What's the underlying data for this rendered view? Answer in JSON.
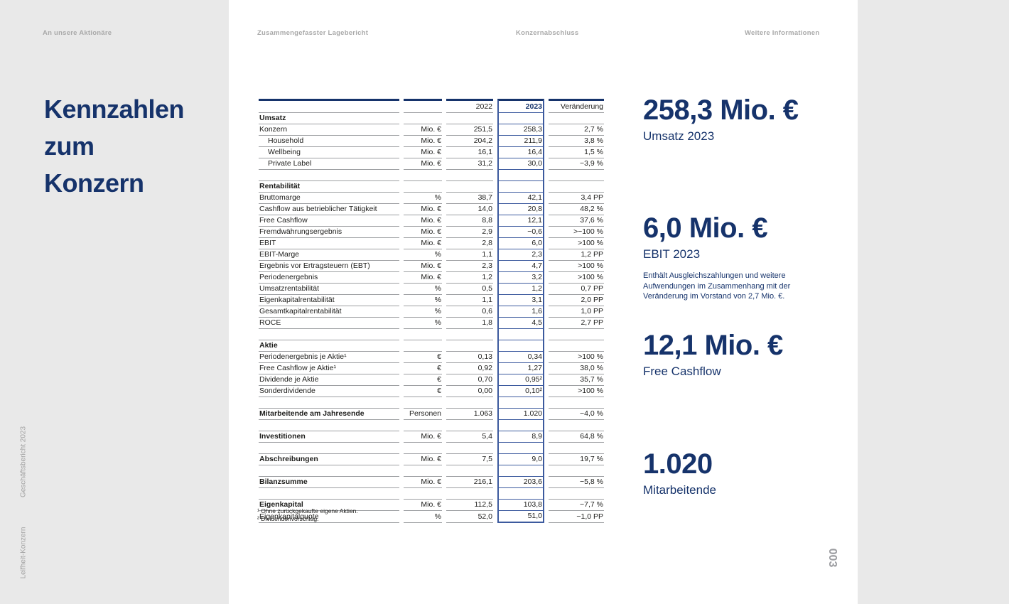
{
  "nav": [
    {
      "label": "An unsere Aktionäre"
    },
    {
      "label": "Zusammengefasster Lagebericht"
    },
    {
      "label": "Konzernabschluss"
    },
    {
      "label": "Weitere Informationen"
    }
  ],
  "title": "Kennzahlen\nzum\nKonzern",
  "side_captions": {
    "report": "Geschäftsbericht 2023",
    "company": "Leifheit-Konzern"
  },
  "page_number": "003",
  "colors": {
    "navy": "#16336b",
    "box_blue": "#3c5a9e",
    "line_gray": "#9d9fa2",
    "panel_gray": "#e9e9e9"
  },
  "table": {
    "columns": [
      "2022",
      "2023",
      "Veränderung"
    ],
    "rows": [
      {
        "type": "section",
        "label": "Umsatz"
      },
      {
        "type": "row",
        "label": "Konzern",
        "unit": "Mio. €",
        "y2022": "251,5",
        "y2023": "258,3",
        "change": "2,7 %"
      },
      {
        "type": "row",
        "indent": true,
        "label": "Household",
        "unit": "Mio. €",
        "y2022": "204,2",
        "y2023": "211,9",
        "change": "3,8 %"
      },
      {
        "type": "row",
        "indent": true,
        "label": "Wellbeing",
        "unit": "Mio. €",
        "y2022": "16,1",
        "y2023": "16,4",
        "change": "1,5 %"
      },
      {
        "type": "row",
        "indent": true,
        "label": "Private Label",
        "unit": "Mio. €",
        "y2022": "31,2",
        "y2023": "30,0",
        "change": "−3,9 %"
      },
      {
        "type": "blank"
      },
      {
        "type": "section",
        "label": "Rentabilität"
      },
      {
        "type": "row",
        "label": "Bruttomarge",
        "unit": "%",
        "y2022": "38,7",
        "y2023": "42,1",
        "change": "3,4 PP"
      },
      {
        "type": "row",
        "label": "Cashflow aus betrieblicher Tätigkeit",
        "unit": "Mio. €",
        "y2022": "14,0",
        "y2023": "20,8",
        "change": "48,2 %"
      },
      {
        "type": "row",
        "label": "Free Cashflow",
        "unit": "Mio. €",
        "y2022": "8,8",
        "y2023": "12,1",
        "change": "37,6 %"
      },
      {
        "type": "row",
        "label": "Fremdwährungsergebnis",
        "unit": "Mio. €",
        "y2022": "2,9",
        "y2023": "−0,6",
        "change": ">−100 %"
      },
      {
        "type": "row",
        "label": "EBIT",
        "unit": "Mio. €",
        "y2022": "2,8",
        "y2023": "6,0",
        "change": ">100 %"
      },
      {
        "type": "row",
        "label": "EBIT-Marge",
        "unit": "%",
        "y2022": "1,1",
        "y2023": "2,3",
        "change": "1,2 PP"
      },
      {
        "type": "row",
        "label": "Ergebnis vor Ertragsteuern (EBT)",
        "unit": "Mio. €",
        "y2022": "2,3",
        "y2023": "4,7",
        "change": ">100 %"
      },
      {
        "type": "row",
        "label": "Periodenergebnis",
        "unit": "Mio. €",
        "y2022": "1,2",
        "y2023": "3,2",
        "change": ">100 %"
      },
      {
        "type": "row",
        "label": "Umsatzrentabilität",
        "unit": "%",
        "y2022": "0,5",
        "y2023": "1,2",
        "change": "0,7 PP"
      },
      {
        "type": "row",
        "label": "Eigenkapitalrentabilität",
        "unit": "%",
        "y2022": "1,1",
        "y2023": "3,1",
        "change": "2,0 PP"
      },
      {
        "type": "row",
        "label": "Gesamtkapitalrentabilität",
        "unit": "%",
        "y2022": "0,6",
        "y2023": "1,6",
        "change": "1,0 PP"
      },
      {
        "type": "row",
        "label": "ROCE",
        "unit": "%",
        "y2022": "1,8",
        "y2023": "4,5",
        "change": "2,7 PP"
      },
      {
        "type": "blank"
      },
      {
        "type": "section",
        "label": "Aktie"
      },
      {
        "type": "row",
        "label": "Periodenergebnis je Aktie¹",
        "unit": "€",
        "y2022": "0,13",
        "y2023": "0,34",
        "change": ">100 %"
      },
      {
        "type": "row",
        "label": "Free Cashflow je Aktie¹",
        "unit": "€",
        "y2022": "0,92",
        "y2023": "1,27",
        "change": "38,0 %"
      },
      {
        "type": "row",
        "label": "Dividende je Aktie",
        "unit": "€",
        "y2022": "0,70",
        "y2023": "0,95²",
        "change": "35,7 %"
      },
      {
        "type": "row",
        "label": "Sonderdividende",
        "unit": "€",
        "y2022": "0,00",
        "y2023": "0,10²",
        "change": ">100 %"
      },
      {
        "type": "blank"
      },
      {
        "type": "bold",
        "label": "Mitarbeitende am Jahresende",
        "unit": "Personen",
        "y2022": "1.063",
        "y2023": "1.020",
        "change": "−4,0 %"
      },
      {
        "type": "blank"
      },
      {
        "type": "bold",
        "label": "Investitionen",
        "unit": "Mio. €",
        "y2022": "5,4",
        "y2023": "8,9",
        "change": "64,8 %"
      },
      {
        "type": "blank"
      },
      {
        "type": "bold",
        "label": "Abschreibungen",
        "unit": "Mio. €",
        "y2022": "7,5",
        "y2023": "9,0",
        "change": "19,7 %"
      },
      {
        "type": "blank"
      },
      {
        "type": "bold",
        "label": "Bilanzsumme",
        "unit": "Mio. €",
        "y2022": "216,1",
        "y2023": "203,6",
        "change": "−5,8 %"
      },
      {
        "type": "blank"
      },
      {
        "type": "bold",
        "label": "Eigenkapital",
        "unit": "Mio. €",
        "y2022": "112,5",
        "y2023": "103,8",
        "change": "−7,7 %"
      },
      {
        "type": "row",
        "label": "Eigenkapitalquote",
        "unit": "%",
        "y2022": "52,0",
        "y2023": "51,0",
        "change": "−1,0 PP"
      }
    ]
  },
  "footnotes": [
    "¹ Ohne zurückgekaufte eigene Aktien.",
    "² Dividendenvorschlag."
  ],
  "highlights": [
    {
      "value": "258,3 Mio. €",
      "label": "Umsatz 2023",
      "note": ""
    },
    {
      "value": "6,0 Mio. €",
      "label": "EBIT 2023",
      "note": "Enthält Ausgleichszahlungen und weitere Aufwendungen im Zusammenhang mit der Veränderung im Vorstand von 2,7 Mio. €."
    },
    {
      "value": "12,1 Mio. €",
      "label": "Free Cashflow",
      "note": ""
    },
    {
      "value": "1.020",
      "label": "Mitarbeitende",
      "note": ""
    }
  ]
}
